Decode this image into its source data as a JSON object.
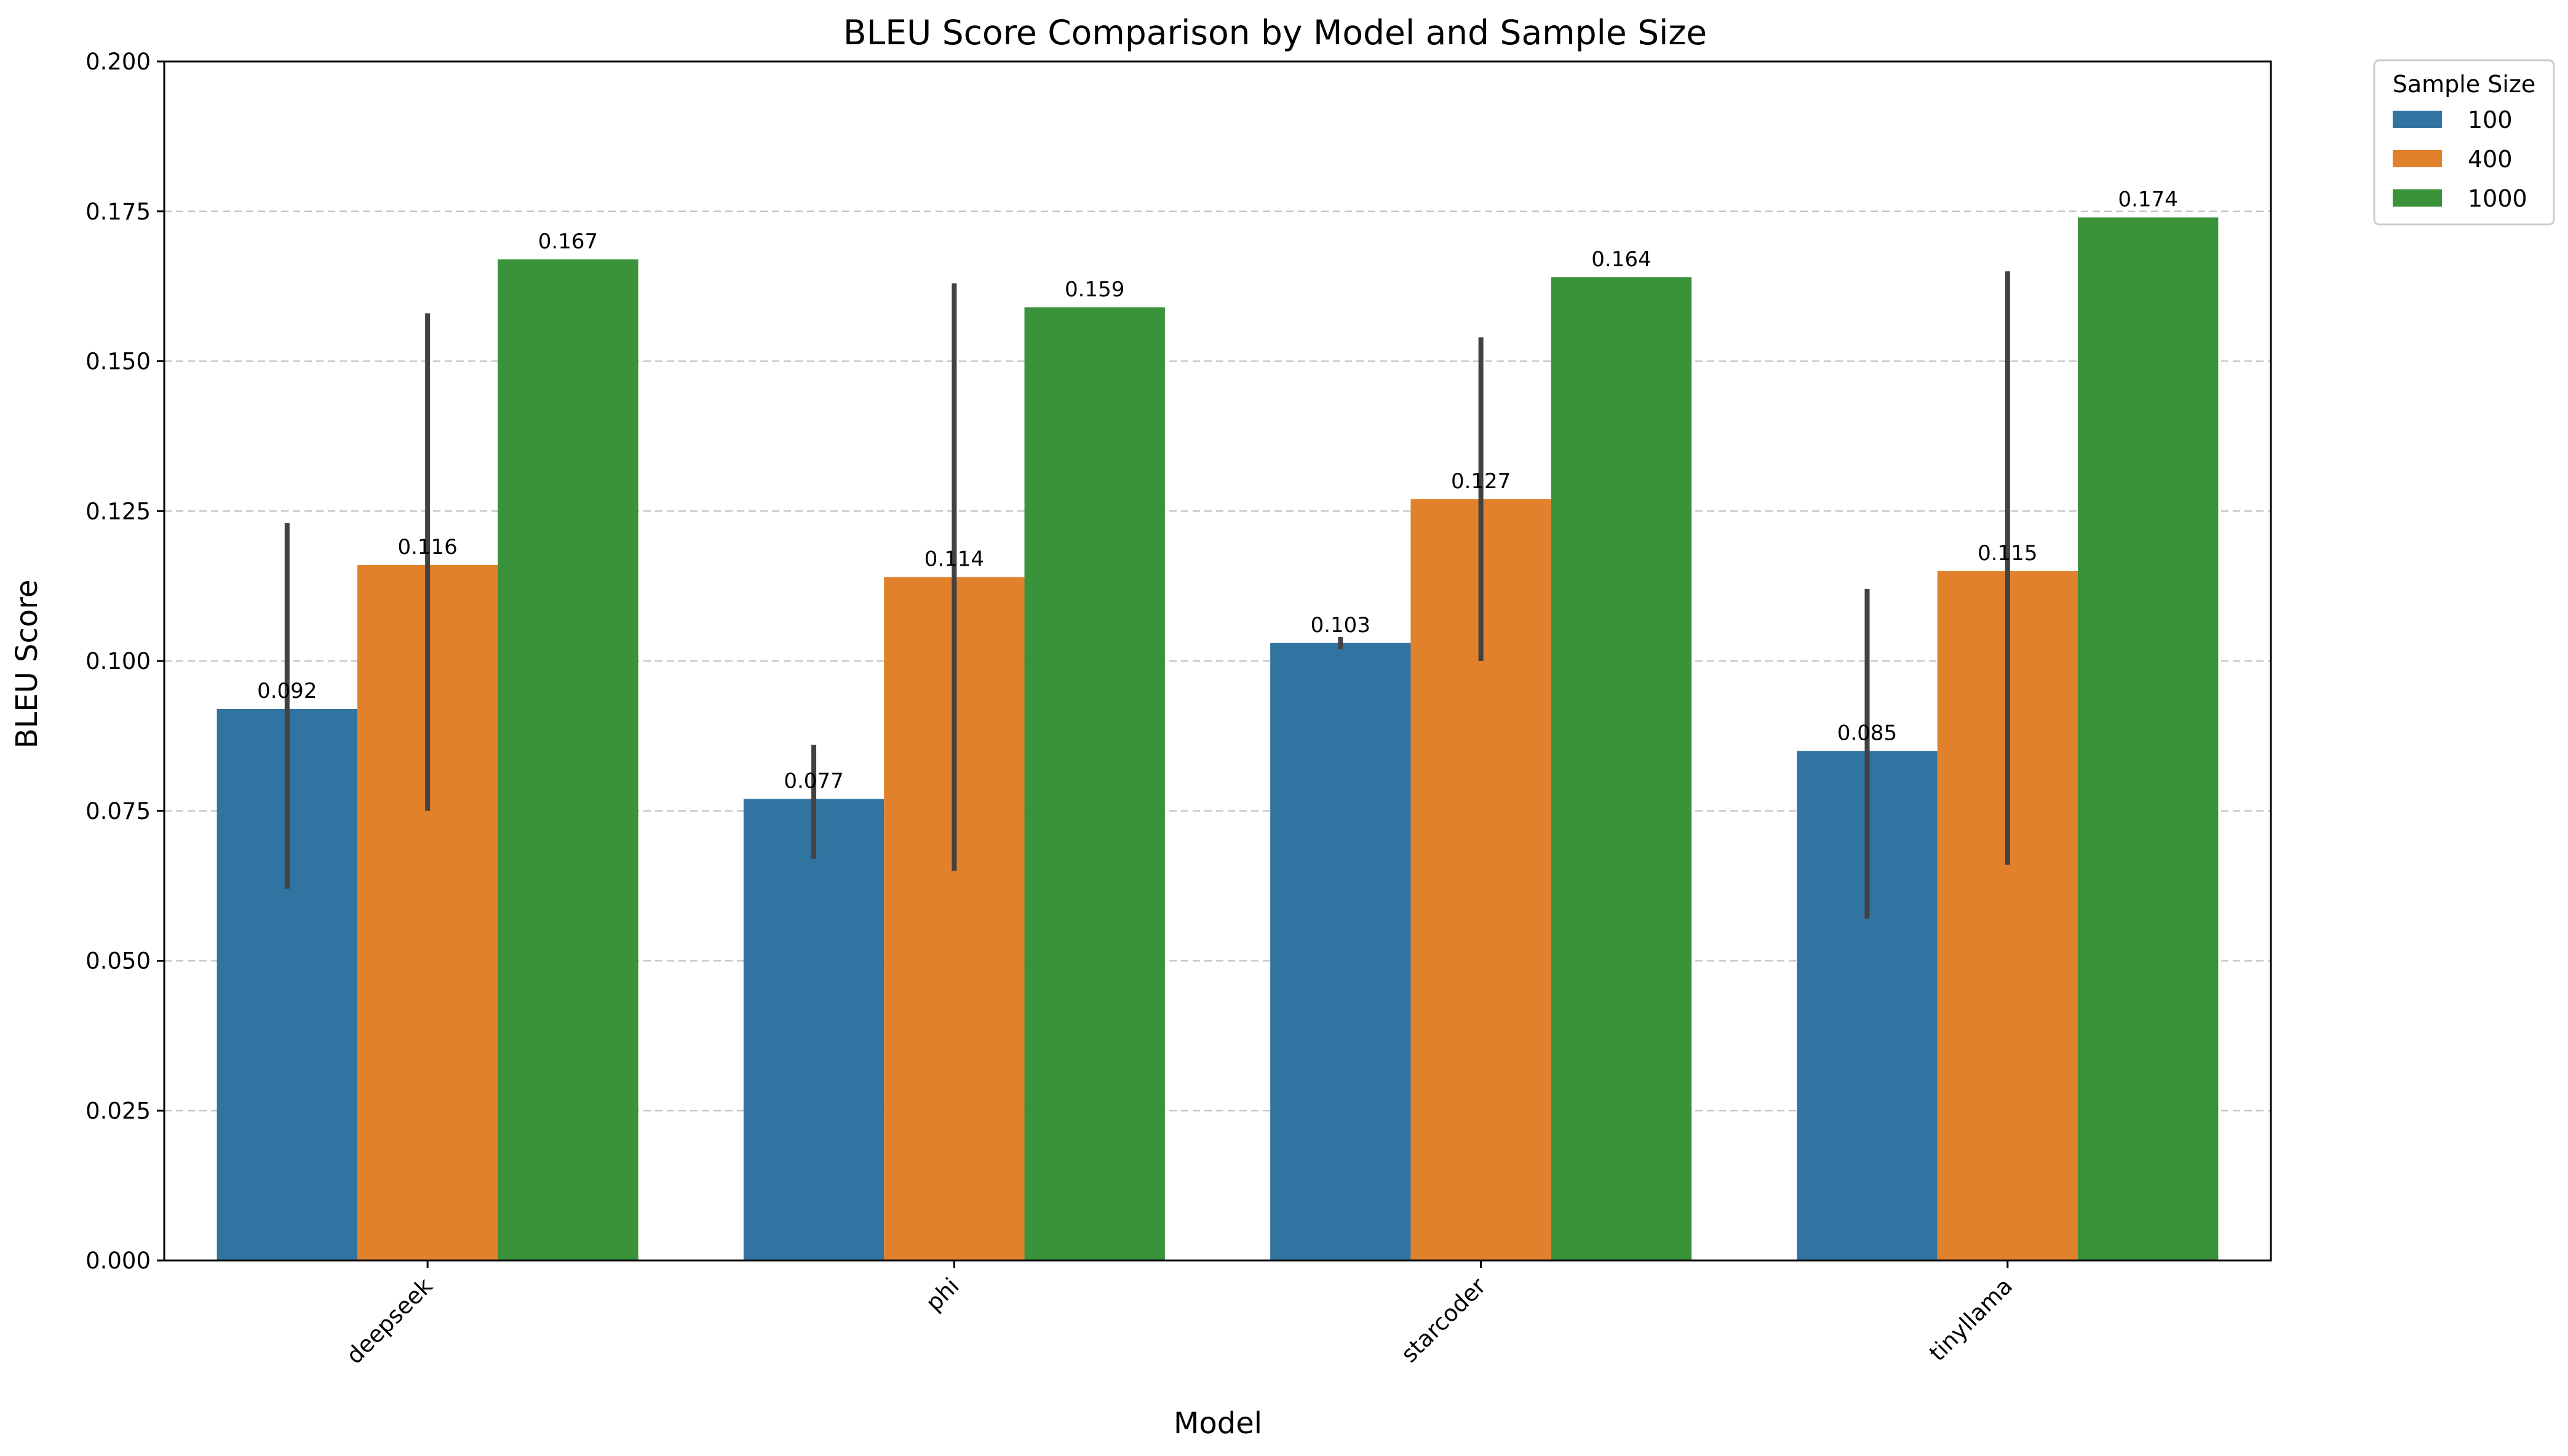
{
  "chart_data": {
    "type": "bar",
    "title": "BLEU Score Comparison by Model and Sample Size",
    "xlabel": "Model",
    "ylabel": "BLEU Score",
    "categories": [
      "deepseek",
      "phi",
      "starcoder",
      "tinyllama"
    ],
    "ylim": [
      0,
      0.2
    ],
    "yticks": [
      "0.000",
      "0.025",
      "0.050",
      "0.075",
      "0.100",
      "0.125",
      "0.150",
      "0.175",
      "0.200"
    ],
    "grid": "y-dashed",
    "legend": {
      "title": "Sample Size",
      "placement": "outside-top-right"
    },
    "series": [
      {
        "name": "100",
        "color": "#3274a1",
        "values": [
          0.092,
          0.077,
          0.103,
          0.085
        ],
        "labels": [
          "0.092",
          "0.077",
          "0.103",
          "0.085"
        ],
        "error_low": [
          0.062,
          0.067,
          0.102,
          0.057
        ],
        "error_high": [
          0.123,
          0.086,
          0.104,
          0.112
        ]
      },
      {
        "name": "400",
        "color": "#e1812c",
        "values": [
          0.116,
          0.114,
          0.127,
          0.115
        ],
        "labels": [
          "0.116",
          "0.114",
          "0.127",
          "0.115"
        ],
        "error_low": [
          0.075,
          0.065,
          0.1,
          0.066
        ],
        "error_high": [
          0.158,
          0.163,
          0.154,
          0.165
        ]
      },
      {
        "name": "1000",
        "color": "#3a923a",
        "values": [
          0.167,
          0.159,
          0.164,
          0.174
        ],
        "labels": [
          "0.167",
          "0.159",
          "0.164",
          "0.174"
        ],
        "error_low": [
          null,
          null,
          null,
          null
        ],
        "error_high": [
          null,
          null,
          null,
          null
        ]
      }
    ]
  }
}
